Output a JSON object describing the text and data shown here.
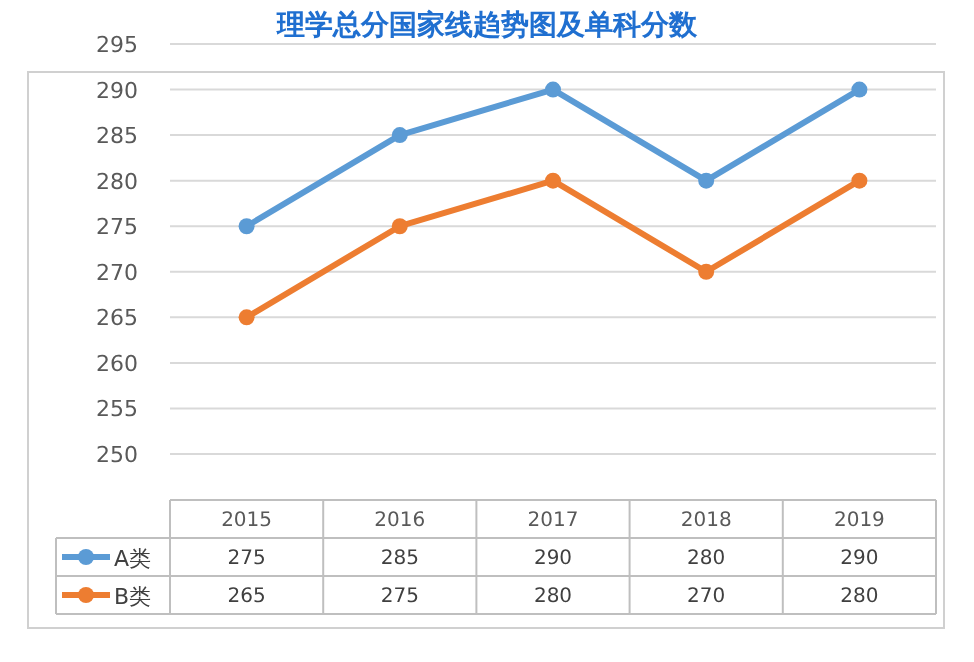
{
  "chart_data": {
    "type": "line",
    "title": "理学总分国家线趋势图及单科分数",
    "categories": [
      "2015",
      "2016",
      "2017",
      "2018",
      "2019"
    ],
    "series": [
      {
        "name": "A类",
        "color": "#5b9bd5",
        "values": [
          275,
          285,
          290,
          280,
          290
        ]
      },
      {
        "name": "B类",
        "color": "#ed7d31",
        "values": [
          265,
          275,
          280,
          270,
          280
        ]
      }
    ],
    "ylim": [
      250,
      295
    ],
    "yticks": [
      250,
      255,
      260,
      265,
      270,
      275,
      280,
      285,
      290,
      295
    ],
    "grid": "y",
    "legend": "bottom left",
    "data_labels": true,
    "marker": "circle",
    "line_style": "solid"
  }
}
